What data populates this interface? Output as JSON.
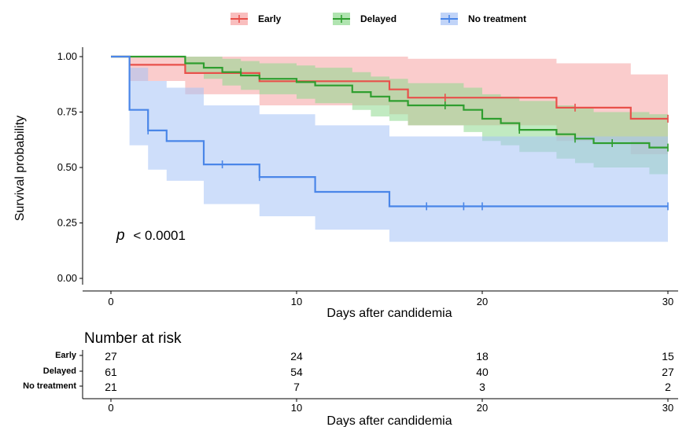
{
  "chart_data": {
    "type": "line",
    "xlabel": "Days after candidemia",
    "ylabel": "Survival probability",
    "xlim": [
      -1.5,
      31
    ],
    "ylim": [
      -0.04,
      1.04
    ],
    "x_ticks": [
      "0",
      "10",
      "20",
      "30"
    ],
    "y_ticks": [
      "0.00",
      "0.25",
      "0.50",
      "0.75",
      "1.00"
    ],
    "annotation_p": "p",
    "annotation_value": "< 0.0001",
    "legend_position": "top",
    "series": [
      {
        "name": "Early",
        "color": "#e8504a",
        "fill": "#f6a3a3",
        "steps": [
          [
            0,
            1.0
          ],
          [
            1,
            0.963
          ],
          [
            4,
            0.926
          ],
          [
            8,
            0.889
          ],
          [
            15,
            0.852
          ],
          [
            16,
            0.815
          ],
          [
            24,
            0.77
          ],
          [
            28,
            0.72
          ],
          [
            30,
            0.72
          ]
        ],
        "ci_upper": [
          [
            0,
            1.0
          ],
          [
            1,
            1.0
          ],
          [
            4,
            1.0
          ],
          [
            8,
            1.0
          ],
          [
            15,
            1.0
          ],
          [
            16,
            0.99
          ],
          [
            24,
            0.97
          ],
          [
            28,
            0.92
          ],
          [
            30,
            0.92
          ]
        ],
        "ci_lower": [
          [
            0,
            1.0
          ],
          [
            1,
            0.89
          ],
          [
            4,
            0.83
          ],
          [
            8,
            0.78
          ],
          [
            15,
            0.74
          ],
          [
            16,
            0.69
          ],
          [
            24,
            0.62
          ],
          [
            28,
            0.56
          ],
          [
            30,
            0.56
          ]
        ],
        "censored": [
          [
            18,
            0.815
          ],
          [
            25,
            0.77
          ],
          [
            30,
            0.72
          ]
        ]
      },
      {
        "name": "Delayed",
        "color": "#2f9e2f",
        "fill": "#8ed88e",
        "steps": [
          [
            0,
            1.0
          ],
          [
            4,
            0.97
          ],
          [
            5,
            0.95
          ],
          [
            6,
            0.93
          ],
          [
            7,
            0.915
          ],
          [
            8,
            0.9
          ],
          [
            10,
            0.885
          ],
          [
            11,
            0.87
          ],
          [
            13,
            0.84
          ],
          [
            14,
            0.82
          ],
          [
            15,
            0.8
          ],
          [
            16,
            0.78
          ],
          [
            19,
            0.76
          ],
          [
            20,
            0.72
          ],
          [
            21,
            0.7
          ],
          [
            22,
            0.67
          ],
          [
            24,
            0.65
          ],
          [
            25,
            0.63
          ],
          [
            26,
            0.61
          ],
          [
            29,
            0.59
          ],
          [
            30,
            0.59
          ]
        ],
        "ci_upper": [
          [
            0,
            1.0
          ],
          [
            4,
            1.0
          ],
          [
            5,
            1.0
          ],
          [
            6,
            0.99
          ],
          [
            7,
            0.98
          ],
          [
            8,
            0.97
          ],
          [
            10,
            0.96
          ],
          [
            11,
            0.95
          ],
          [
            13,
            0.93
          ],
          [
            14,
            0.91
          ],
          [
            15,
            0.9
          ],
          [
            16,
            0.88
          ],
          [
            19,
            0.86
          ],
          [
            20,
            0.83
          ],
          [
            21,
            0.82
          ],
          [
            22,
            0.8
          ],
          [
            24,
            0.78
          ],
          [
            25,
            0.77
          ],
          [
            26,
            0.75
          ],
          [
            29,
            0.74
          ],
          [
            30,
            0.74
          ]
        ],
        "ci_lower": [
          [
            0,
            1.0
          ],
          [
            4,
            0.93
          ],
          [
            5,
            0.9
          ],
          [
            6,
            0.87
          ],
          [
            7,
            0.85
          ],
          [
            8,
            0.83
          ],
          [
            10,
            0.81
          ],
          [
            11,
            0.79
          ],
          [
            13,
            0.76
          ],
          [
            14,
            0.73
          ],
          [
            15,
            0.71
          ],
          [
            16,
            0.69
          ],
          [
            19,
            0.66
          ],
          [
            20,
            0.62
          ],
          [
            21,
            0.6
          ],
          [
            22,
            0.57
          ],
          [
            24,
            0.54
          ],
          [
            25,
            0.52
          ],
          [
            26,
            0.5
          ],
          [
            29,
            0.47
          ],
          [
            30,
            0.47
          ]
        ],
        "censored": [
          [
            7,
            0.93
          ],
          [
            18,
            0.78
          ],
          [
            22,
            0.67
          ],
          [
            25,
            0.63
          ],
          [
            27,
            0.61
          ],
          [
            30,
            0.59
          ]
        ]
      },
      {
        "name": "No treatment",
        "color": "#4a86e8",
        "fill": "#a6c2f5",
        "steps": [
          [
            0,
            1.0
          ],
          [
            1,
            0.76
          ],
          [
            2,
            0.667
          ],
          [
            3,
            0.619
          ],
          [
            5,
            0.514
          ],
          [
            8,
            0.457
          ],
          [
            11,
            0.39
          ],
          [
            15,
            0.325
          ],
          [
            30,
            0.325
          ]
        ],
        "ci_upper": [
          [
            0,
            1.0
          ],
          [
            1,
            0.95
          ],
          [
            2,
            0.89
          ],
          [
            3,
            0.86
          ],
          [
            5,
            0.78
          ],
          [
            8,
            0.74
          ],
          [
            11,
            0.69
          ],
          [
            15,
            0.64
          ],
          [
            30,
            0.64
          ]
        ],
        "ci_lower": [
          [
            0,
            1.0
          ],
          [
            1,
            0.6
          ],
          [
            2,
            0.49
          ],
          [
            3,
            0.44
          ],
          [
            5,
            0.335
          ],
          [
            8,
            0.28
          ],
          [
            11,
            0.22
          ],
          [
            15,
            0.165
          ],
          [
            30,
            0.165
          ]
        ],
        "censored": [
          [
            2,
            0.667
          ],
          [
            6,
            0.514
          ],
          [
            8,
            0.457
          ],
          [
            17,
            0.325
          ],
          [
            19,
            0.325
          ],
          [
            20,
            0.325
          ],
          [
            30,
            0.325
          ]
        ]
      }
    ],
    "risk_table": {
      "title": "Number at risk",
      "times": [
        0,
        10,
        20,
        30
      ],
      "xlabel": "Days after candidemia",
      "groups": [
        {
          "name": "Early",
          "counts": [
            "27",
            "24",
            "18",
            "15"
          ]
        },
        {
          "name": "Delayed",
          "counts": [
            "61",
            "54",
            "40",
            "27"
          ]
        },
        {
          "name": "No treatment",
          "counts": [
            "21",
            "7",
            "3",
            "2"
          ]
        }
      ]
    }
  }
}
